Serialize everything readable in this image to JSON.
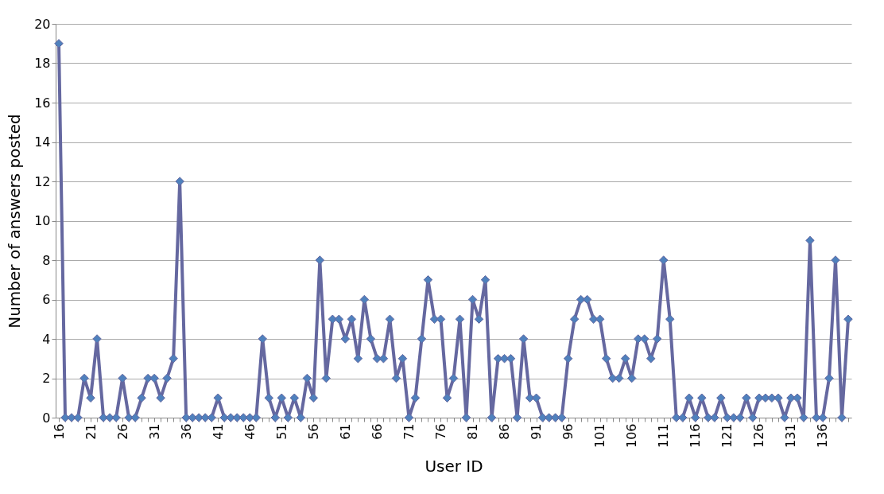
{
  "chart_data": {
    "type": "line",
    "xlabel": "User ID",
    "ylabel": "Number of answers posted",
    "categories": [
      "16",
      null,
      null,
      null,
      null,
      "21",
      null,
      null,
      null,
      null,
      "26",
      null,
      null,
      null,
      null,
      "31",
      null,
      null,
      null,
      null,
      "36",
      null,
      null,
      null,
      null,
      "41",
      null,
      null,
      null,
      null,
      "46",
      null,
      null,
      null,
      null,
      "51",
      null,
      null,
      null,
      null,
      "56",
      null,
      null,
      null,
      null,
      "61",
      null,
      null,
      null,
      null,
      "66",
      null,
      null,
      null,
      null,
      "71",
      null,
      null,
      null,
      null,
      "76",
      null,
      null,
      null,
      null,
      "81",
      null,
      null,
      null,
      null,
      "86",
      null,
      null,
      null,
      null,
      "91",
      null,
      null,
      null,
      null,
      "96",
      null,
      null,
      null,
      null,
      "101",
      null,
      null,
      null,
      null,
      "106",
      null,
      null,
      null,
      null,
      "111",
      null,
      null,
      null,
      null,
      "116",
      null,
      null,
      null,
      null,
      "121",
      null,
      null,
      null,
      null,
      "126",
      null,
      null,
      null,
      null,
      "131",
      null,
      null,
      null,
      null,
      "136",
      null,
      null,
      null,
      null
    ],
    "series": [
      {
        "color": "#6568a0",
        "values": [
          19,
          0,
          0,
          0,
          2,
          1,
          4,
          0,
          0,
          0,
          2,
          0,
          0,
          1,
          2,
          2,
          1,
          2,
          3,
          12,
          0,
          0,
          0,
          0,
          0,
          1,
          0,
          0,
          0,
          0,
          0,
          0,
          4,
          1,
          0,
          1,
          0,
          1,
          0,
          2,
          1,
          8,
          2,
          5,
          5,
          4,
          5,
          3,
          6,
          4,
          3,
          3,
          5,
          2,
          3,
          0,
          1,
          4,
          7,
          5,
          5,
          1,
          2,
          5,
          0,
          6,
          5,
          7,
          0,
          3,
          3,
          3,
          0,
          4,
          1,
          1,
          0,
          0,
          0,
          0,
          3,
          5,
          6,
          6,
          5,
          5,
          3,
          2,
          2,
          3,
          2,
          4,
          4,
          3,
          4,
          8,
          5,
          0,
          0,
          1,
          0,
          1,
          0,
          0,
          1,
          0,
          0,
          0,
          1,
          0,
          1,
          1,
          1,
          1,
          0,
          1,
          1,
          0,
          9,
          0,
          0,
          2,
          8,
          0,
          5
        ]
      }
    ],
    "ylim": [
      0,
      20
    ],
    "yticks": [
      0,
      2,
      4,
      6,
      8,
      10,
      12,
      14,
      16,
      18,
      20
    ],
    "grid": "y",
    "marker": "diamond",
    "line_style": "solid"
  }
}
